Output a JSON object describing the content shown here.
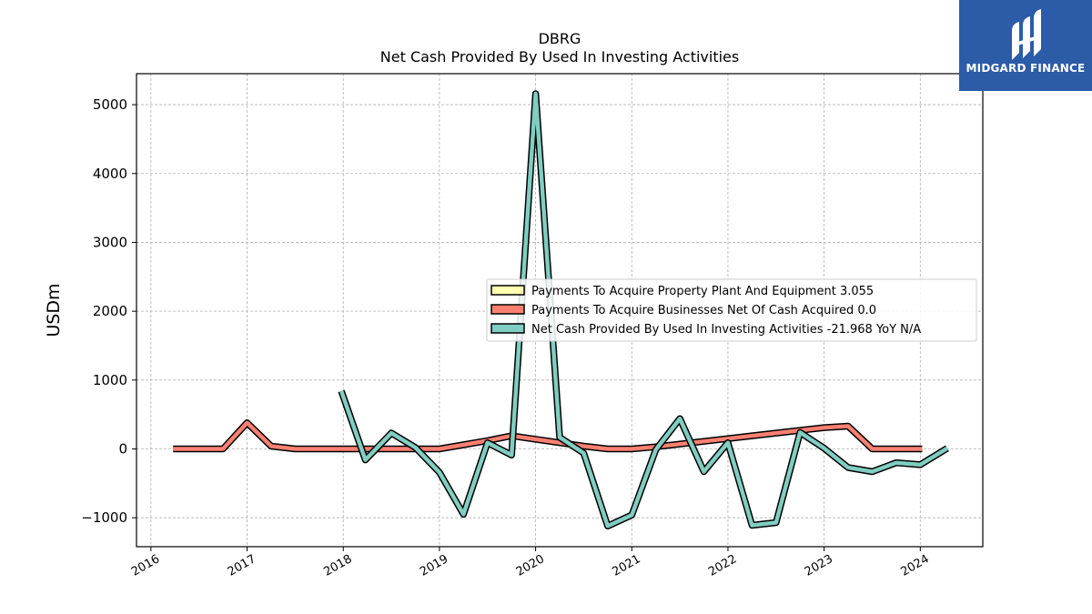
{
  "chart_data": {
    "type": "line",
    "title": "DBRG",
    "subtitle": "Net Cash Provided By Used In Investing Activities",
    "ylabel": "USDm",
    "xlabel": "",
    "ylim": [
      -1420,
      5450
    ],
    "xlim": [
      2015.85,
      2024.65
    ],
    "yticks": [
      -1000,
      0,
      1000,
      2000,
      3000,
      4000,
      5000
    ],
    "ytick_labels": [
      "−1000",
      "0",
      "1000",
      "2000",
      "3000",
      "4000",
      "5000"
    ],
    "xticks": [
      2016,
      2017,
      2018,
      2019,
      2020,
      2021,
      2022,
      2023,
      2024
    ],
    "xtick_labels": [
      "2016",
      "2017",
      "2018",
      "2019",
      "2020",
      "2021",
      "2022",
      "2023",
      "2024"
    ],
    "grid": true,
    "legend_position": "center-right",
    "series": [
      {
        "name": "Payments To Acquire Property Plant And Equipment",
        "legend_label": "Payments To Acquire Property Plant And Equipment  3.055",
        "color": "#ffffb3",
        "x": [],
        "values": []
      },
      {
        "name": "Payments To Acquire Businesses Net Of Cash Acquired",
        "legend_label": "Payments To Acquire Businesses Net Of Cash Acquired  0.0",
        "color": "#fb8072",
        "x": [
          2016.23,
          2016.5,
          2016.75,
          2017.0,
          2017.25,
          2017.5,
          2017.75,
          2018.0,
          2018.25,
          2018.5,
          2018.75,
          2019.0,
          2019.25,
          2019.5,
          2019.75,
          2020.0,
          2020.25,
          2020.5,
          2020.75,
          2021.0,
          2021.25,
          2021.5,
          2021.75,
          2022.0,
          2022.25,
          2022.5,
          2022.75,
          2023.0,
          2023.25,
          2023.5,
          2023.75,
          2024.02
        ],
        "values": [
          0,
          0,
          0,
          380,
          40,
          0,
          0,
          0,
          0,
          0,
          0,
          0,
          60,
          120,
          190,
          140,
          90,
          40,
          0,
          0,
          30,
          70,
          110,
          150,
          190,
          230,
          270,
          310,
          330,
          0,
          0,
          0
        ]
      },
      {
        "name": "Net Cash Provided By Used In Investing Activities",
        "legend_label": "Net Cash Provided By Used In Investing Activities  -21.968 YoY N/A",
        "color": "#80cdc1",
        "x": [
          2017.98,
          2018.23,
          2018.5,
          2018.75,
          2019.0,
          2019.25,
          2019.5,
          2019.75,
          2020.0,
          2020.25,
          2020.5,
          2020.75,
          2021.0,
          2021.25,
          2021.5,
          2021.75,
          2022.0,
          2022.25,
          2022.5,
          2022.75,
          2023.0,
          2023.25,
          2023.5,
          2023.75,
          2024.0,
          2024.28
        ],
        "values": [
          840,
          -160,
          230,
          20,
          -340,
          -950,
          90,
          -90,
          5160,
          170,
          -60,
          -1120,
          -960,
          -10,
          440,
          -330,
          90,
          -1110,
          -1070,
          240,
          10,
          -270,
          -330,
          -200,
          -230,
          10
        ]
      }
    ]
  },
  "watermark": {
    "text": "MIDGARD FINANCE",
    "color": "#2c5ba8"
  }
}
